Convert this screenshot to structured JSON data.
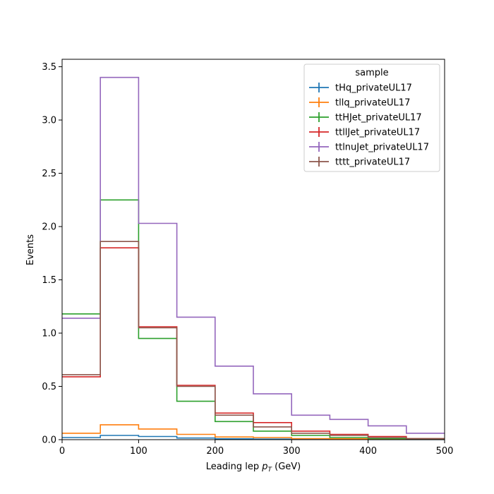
{
  "chart_data": {
    "type": "histogram-step",
    "title": "",
    "xlabel_main": "Leading lep ",
    "xlabel_var": "p",
    "xlabel_sub": "T",
    "xlabel_unit": " (GeV)",
    "ylabel": "Events",
    "xlim": [
      0,
      500
    ],
    "ylim": [
      0,
      3.57
    ],
    "xticks": [
      0,
      100,
      200,
      300,
      400,
      500
    ],
    "yticks": [
      0.0,
      0.5,
      1.0,
      1.5,
      2.0,
      2.5,
      3.0,
      3.5
    ],
    "ytick_labels": [
      "0.0",
      "0.5",
      "1.0",
      "1.5",
      "2.0",
      "2.5",
      "3.0",
      "3.5"
    ],
    "bin_edges": [
      0,
      50,
      100,
      150,
      200,
      250,
      300,
      350,
      400,
      450,
      500
    ],
    "legend": {
      "title": "sample",
      "placement": "top-right"
    },
    "grid": false,
    "series": [
      {
        "name": "tHq_privateUL17",
        "color": "#1f77b4",
        "values": [
          0.02,
          0.04,
          0.03,
          0.015,
          0.008,
          0.005,
          0.003,
          0.002,
          0.001,
          0.001
        ]
      },
      {
        "name": "tllq_privateUL17",
        "color": "#ff7f0e",
        "values": [
          0.06,
          0.14,
          0.1,
          0.05,
          0.025,
          0.02,
          0.01,
          0.008,
          0.005,
          0.003
        ]
      },
      {
        "name": "ttHJet_privateUL17",
        "color": "#2ca02c",
        "values": [
          1.18,
          2.25,
          0.95,
          0.36,
          0.17,
          0.08,
          0.04,
          0.02,
          0.01,
          0.005
        ]
      },
      {
        "name": "ttllJet_privateUL17",
        "color": "#d62728",
        "values": [
          0.59,
          1.8,
          1.06,
          0.51,
          0.25,
          0.16,
          0.08,
          0.05,
          0.03,
          0.01
        ]
      },
      {
        "name": "ttlnuJet_privateUL17",
        "color": "#9467bd",
        "values": [
          1.14,
          3.4,
          2.03,
          1.15,
          0.69,
          0.43,
          0.23,
          0.19,
          0.13,
          0.06
        ]
      },
      {
        "name": "tttt_privateUL17",
        "color": "#8c564b",
        "values": [
          0.61,
          1.86,
          1.05,
          0.5,
          0.23,
          0.12,
          0.06,
          0.04,
          0.02,
          0.01
        ]
      }
    ]
  }
}
